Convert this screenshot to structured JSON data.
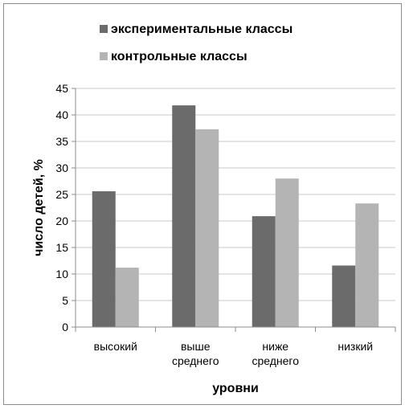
{
  "chart_data": {
    "type": "bar",
    "categories": [
      [
        "высокий"
      ],
      [
        "выше",
        "среднего"
      ],
      [
        "ниже",
        "среднего"
      ],
      [
        "низкий"
      ]
    ],
    "series": [
      {
        "name": "экспериментальные классы",
        "values": [
          25.6,
          41.8,
          20.9,
          11.6
        ],
        "color": "#6b6b6b"
      },
      {
        "name": "контрольные классы",
        "values": [
          11.2,
          37.3,
          28.0,
          23.3
        ],
        "color": "#b4b4b4"
      }
    ],
    "xlabel": "уровни",
    "ylabel": "число детей, %",
    "ylim": [
      0,
      45
    ],
    "yticks": [
      0,
      5,
      10,
      15,
      20,
      25,
      30,
      35,
      40,
      45
    ],
    "grid": true,
    "legend_position": "top"
  }
}
